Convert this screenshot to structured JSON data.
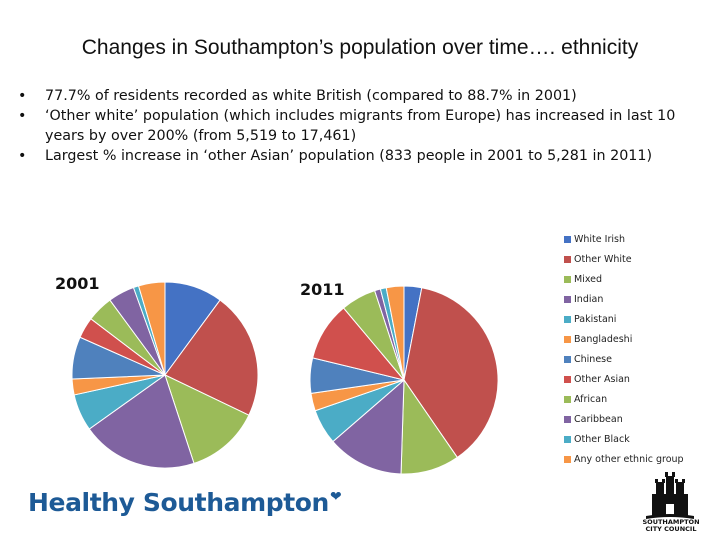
{
  "title": "Changes in Southampton’s population over time…. ethnicity",
  "bullets": [
    "77.7% of residents recorded as white British (compared to 88.7% in 2001)",
    "‘Other white’ population (which includes migrants from Europe) has increased in last 10 years by over 200% (from 5,519 to 17,461)",
    "Largest % increase in ‘other Asian’ population (833 people in 2001 to 5,281 in 2011)"
  ],
  "bullet_symbol": "•",
  "chart_data": {
    "type": "pie",
    "categories": [
      "White Irish",
      "Other White",
      "Mixed",
      "Indian",
      "Pakistani",
      "Bangladeshi",
      "Chinese",
      "Other Asian",
      "African",
      "Caribbean",
      "Other Black",
      "Any other ethnic group"
    ],
    "colors": [
      "#4472c4",
      "#c0504d",
      "#9bbb59",
      "#8064a2",
      "#4bacc6",
      "#f79646",
      "#4f81bd",
      "#d0504d",
      "#9bbb59",
      "#8064a2",
      "#4bacc6",
      "#f79646"
    ],
    "series": [
      {
        "name": "2001",
        "values": [
          11,
          24,
          14,
          22,
          7,
          3,
          8,
          4,
          5,
          5,
          1,
          5
        ]
      },
      {
        "name": "2011",
        "values": [
          3,
          37,
          10,
          13,
          6,
          3,
          6,
          10,
          6,
          1,
          1,
          3
        ]
      }
    ],
    "legend_position": "right"
  },
  "footer": {
    "brand": "Healthy Southampton",
    "brand_mark": "❤",
    "council": "SOUTHAMPTON CITY COUNCIL"
  }
}
